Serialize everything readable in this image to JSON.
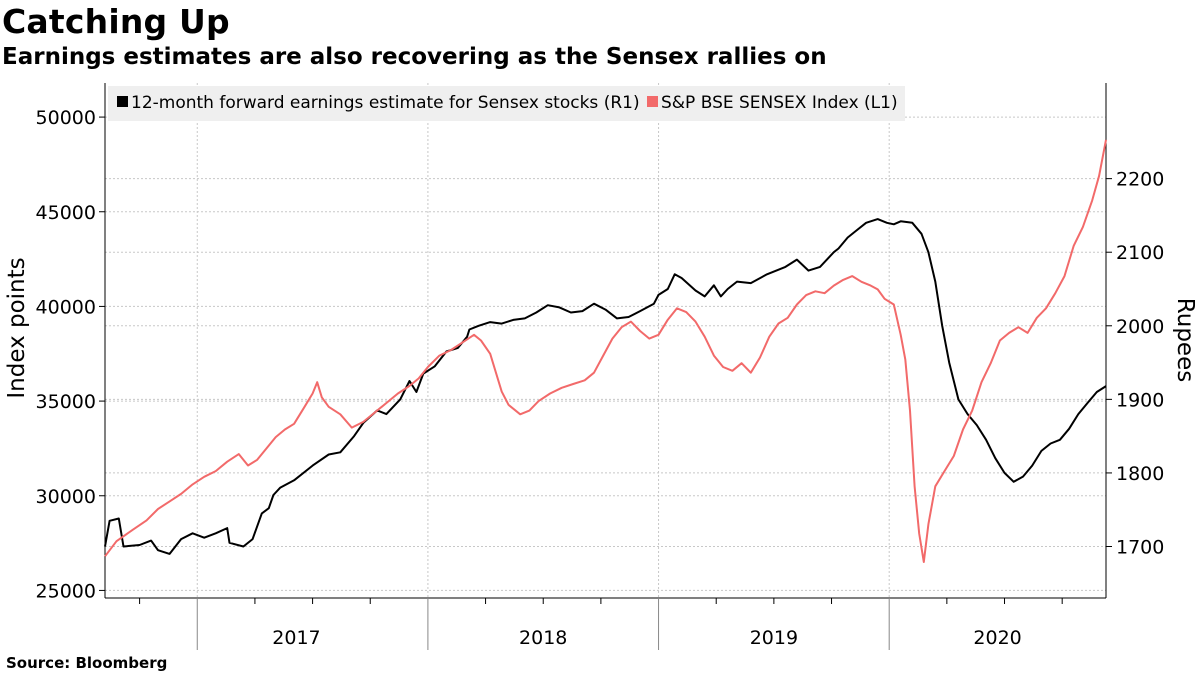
{
  "title": "Catching Up",
  "subtitle": "Earnings estimates are also recovering as the Sensex rallies on",
  "source": "Source: Bloomberg",
  "colors": {
    "earnings": "#000000",
    "sensex": "#f26a6a",
    "grid": "#c8c8c8",
    "legend_bg": "#efefef"
  },
  "chart_data": {
    "type": "line",
    "ylabel_left": "Index points",
    "ylabel_right": "Rupees",
    "xlim": [
      2016.6,
      2020.94
    ],
    "ylim_left": [
      24600,
      51800
    ],
    "ylim_right": [
      1630,
      2330
    ],
    "ticks_left": [
      25000,
      30000,
      35000,
      40000,
      45000,
      50000
    ],
    "ticks_right": [
      1700,
      1800,
      1900,
      2000,
      2100,
      2200
    ],
    "x_tick_labels": [
      {
        "label": "2017",
        "x": 2017
      },
      {
        "label": "2018",
        "x": 2018
      },
      {
        "label": "2019",
        "x": 2019
      },
      {
        "label": "2020",
        "x": 2020
      }
    ],
    "grid": true,
    "legend_position": "top-left",
    "series": [
      {
        "name": "12-month forward earnings estimate for Sensex stocks (R1)",
        "axis": "right",
        "color": "#000000",
        "points": [
          [
            2016.6,
            1700
          ],
          [
            2016.62,
            1735
          ],
          [
            2016.66,
            1738
          ],
          [
            2016.68,
            1700
          ],
          [
            2016.75,
            1702
          ],
          [
            2016.8,
            1708
          ],
          [
            2016.83,
            1695
          ],
          [
            2016.88,
            1690
          ],
          [
            2016.93,
            1710
          ],
          [
            2016.98,
            1718
          ],
          [
            2017.03,
            1712
          ],
          [
            2017.08,
            1718
          ],
          [
            2017.13,
            1725
          ],
          [
            2017.14,
            1705
          ],
          [
            2017.2,
            1700
          ],
          [
            2017.24,
            1710
          ],
          [
            2017.28,
            1745
          ],
          [
            2017.31,
            1752
          ],
          [
            2017.33,
            1770
          ],
          [
            2017.36,
            1780
          ],
          [
            2017.42,
            1790
          ],
          [
            2017.5,
            1810
          ],
          [
            2017.57,
            1825
          ],
          [
            2017.62,
            1828
          ],
          [
            2017.68,
            1850
          ],
          [
            2017.72,
            1868
          ],
          [
            2017.78,
            1885
          ],
          [
            2017.82,
            1880
          ],
          [
            2017.88,
            1900
          ],
          [
            2017.92,
            1925
          ],
          [
            2017.95,
            1910
          ],
          [
            2017.98,
            1935
          ],
          [
            2018.03,
            1945
          ],
          [
            2018.08,
            1965
          ],
          [
            2018.13,
            1970
          ],
          [
            2018.17,
            1985
          ],
          [
            2018.18,
            1995
          ],
          [
            2018.22,
            2000
          ],
          [
            2018.27,
            2005
          ],
          [
            2018.32,
            2003
          ],
          [
            2018.37,
            2008
          ],
          [
            2018.42,
            2010
          ],
          [
            2018.47,
            2018
          ],
          [
            2018.52,
            2028
          ],
          [
            2018.57,
            2025
          ],
          [
            2018.62,
            2018
          ],
          [
            2018.67,
            2020
          ],
          [
            2018.72,
            2030
          ],
          [
            2018.77,
            2022
          ],
          [
            2018.82,
            2010
          ],
          [
            2018.87,
            2012
          ],
          [
            2018.92,
            2020
          ],
          [
            2018.98,
            2030
          ],
          [
            2019.0,
            2042
          ],
          [
            2019.04,
            2050
          ],
          [
            2019.07,
            2070
          ],
          [
            2019.1,
            2065
          ],
          [
            2019.16,
            2048
          ],
          [
            2019.2,
            2040
          ],
          [
            2019.24,
            2055
          ],
          [
            2019.27,
            2040
          ],
          [
            2019.3,
            2050
          ],
          [
            2019.34,
            2060
          ],
          [
            2019.4,
            2058
          ],
          [
            2019.47,
            2070
          ],
          [
            2019.55,
            2080
          ],
          [
            2019.6,
            2090
          ],
          [
            2019.65,
            2075
          ],
          [
            2019.7,
            2080
          ],
          [
            2019.76,
            2100
          ],
          [
            2019.78,
            2105
          ],
          [
            2019.82,
            2120
          ],
          [
            2019.86,
            2130
          ],
          [
            2019.9,
            2140
          ],
          [
            2019.95,
            2145
          ],
          [
            2019.99,
            2140
          ],
          [
            2020.02,
            2138
          ],
          [
            2020.05,
            2142
          ],
          [
            2020.1,
            2140
          ],
          [
            2020.14,
            2125
          ],
          [
            2020.17,
            2100
          ],
          [
            2020.2,
            2060
          ],
          [
            2020.23,
            2000
          ],
          [
            2020.26,
            1950
          ],
          [
            2020.3,
            1900
          ],
          [
            2020.34,
            1880
          ],
          [
            2020.38,
            1865
          ],
          [
            2020.42,
            1845
          ],
          [
            2020.46,
            1820
          ],
          [
            2020.5,
            1800
          ],
          [
            2020.54,
            1788
          ],
          [
            2020.58,
            1795
          ],
          [
            2020.62,
            1810
          ],
          [
            2020.66,
            1830
          ],
          [
            2020.7,
            1840
          ],
          [
            2020.74,
            1845
          ],
          [
            2020.78,
            1860
          ],
          [
            2020.82,
            1880
          ],
          [
            2020.86,
            1895
          ],
          [
            2020.9,
            1910
          ],
          [
            2020.94,
            1918
          ]
        ]
      },
      {
        "name": "S&P BSE SENSEX Index (L1)",
        "axis": "left",
        "color": "#f26a6a",
        "points": [
          [
            2016.6,
            26800
          ],
          [
            2016.65,
            27600
          ],
          [
            2016.72,
            28200
          ],
          [
            2016.78,
            28700
          ],
          [
            2016.83,
            29300
          ],
          [
            2016.88,
            29700
          ],
          [
            2016.93,
            30100
          ],
          [
            2016.98,
            30600
          ],
          [
            2017.03,
            31000
          ],
          [
            2017.08,
            31300
          ],
          [
            2017.13,
            31800
          ],
          [
            2017.18,
            32200
          ],
          [
            2017.22,
            31600
          ],
          [
            2017.26,
            31900
          ],
          [
            2017.3,
            32500
          ],
          [
            2017.34,
            33100
          ],
          [
            2017.38,
            33500
          ],
          [
            2017.42,
            33800
          ],
          [
            2017.46,
            34600
          ],
          [
            2017.5,
            35400
          ],
          [
            2017.52,
            36000
          ],
          [
            2017.54,
            35200
          ],
          [
            2017.57,
            34700
          ],
          [
            2017.62,
            34300
          ],
          [
            2017.67,
            33600
          ],
          [
            2017.72,
            33900
          ],
          [
            2017.77,
            34400
          ],
          [
            2017.82,
            34900
          ],
          [
            2017.87,
            35400
          ],
          [
            2017.92,
            35800
          ],
          [
            2017.96,
            36200
          ],
          [
            2018.0,
            36800
          ],
          [
            2018.05,
            37400
          ],
          [
            2018.1,
            37700
          ],
          [
            2018.15,
            38100
          ],
          [
            2018.2,
            38500
          ],
          [
            2018.23,
            38200
          ],
          [
            2018.27,
            37500
          ],
          [
            2018.32,
            35500
          ],
          [
            2018.35,
            34800
          ],
          [
            2018.4,
            34300
          ],
          [
            2018.44,
            34500
          ],
          [
            2018.48,
            35000
          ],
          [
            2018.53,
            35400
          ],
          [
            2018.58,
            35700
          ],
          [
            2018.63,
            35900
          ],
          [
            2018.68,
            36100
          ],
          [
            2018.72,
            36500
          ],
          [
            2018.76,
            37400
          ],
          [
            2018.8,
            38300
          ],
          [
            2018.84,
            38900
          ],
          [
            2018.88,
            39200
          ],
          [
            2018.92,
            38700
          ],
          [
            2018.96,
            38300
          ],
          [
            2019.0,
            38500
          ],
          [
            2019.04,
            39300
          ],
          [
            2019.08,
            39900
          ],
          [
            2019.12,
            39700
          ],
          [
            2019.16,
            39200
          ],
          [
            2019.2,
            38400
          ],
          [
            2019.24,
            37400
          ],
          [
            2019.28,
            36800
          ],
          [
            2019.32,
            36600
          ],
          [
            2019.36,
            37000
          ],
          [
            2019.4,
            36500
          ],
          [
            2019.44,
            37300
          ],
          [
            2019.48,
            38400
          ],
          [
            2019.52,
            39100
          ],
          [
            2019.56,
            39400
          ],
          [
            2019.6,
            40100
          ],
          [
            2019.64,
            40600
          ],
          [
            2019.68,
            40800
          ],
          [
            2019.72,
            40700
          ],
          [
            2019.76,
            41100
          ],
          [
            2019.8,
            41400
          ],
          [
            2019.84,
            41600
          ],
          [
            2019.88,
            41300
          ],
          [
            2019.92,
            41100
          ],
          [
            2019.95,
            40900
          ],
          [
            2019.98,
            40400
          ],
          [
            2020.02,
            40100
          ],
          [
            2020.05,
            38500
          ],
          [
            2020.07,
            37200
          ],
          [
            2020.09,
            34500
          ],
          [
            2020.11,
            30500
          ],
          [
            2020.13,
            28000
          ],
          [
            2020.15,
            26500
          ],
          [
            2020.17,
            28500
          ],
          [
            2020.2,
            30500
          ],
          [
            2020.24,
            31300
          ],
          [
            2020.28,
            32100
          ],
          [
            2020.32,
            33500
          ],
          [
            2020.36,
            34500
          ],
          [
            2020.4,
            36000
          ],
          [
            2020.44,
            37000
          ],
          [
            2020.48,
            38200
          ],
          [
            2020.52,
            38600
          ],
          [
            2020.56,
            38900
          ],
          [
            2020.6,
            38600
          ],
          [
            2020.64,
            39400
          ],
          [
            2020.68,
            39900
          ],
          [
            2020.72,
            40700
          ],
          [
            2020.76,
            41600
          ],
          [
            2020.8,
            43200
          ],
          [
            2020.84,
            44200
          ],
          [
            2020.88,
            45600
          ],
          [
            2020.91,
            46900
          ],
          [
            2020.94,
            48800
          ]
        ]
      }
    ]
  }
}
